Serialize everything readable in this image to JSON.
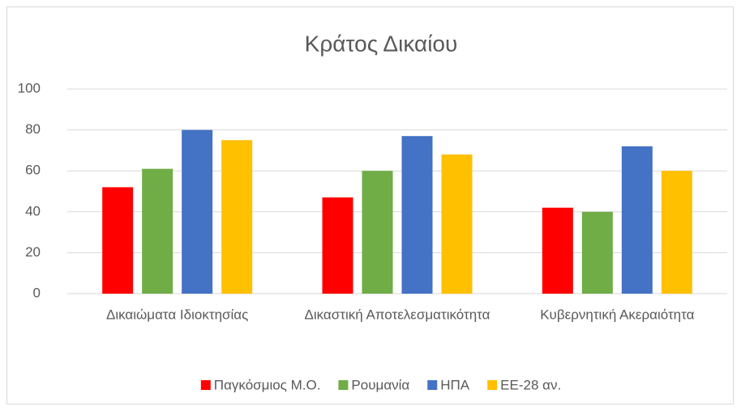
{
  "chart_data": {
    "type": "bar",
    "title": "Κράτος Δικαίου",
    "categories": [
      "Δικαιώματα Ιδιοκτησίας",
      "Δικαστική Αποτελεσματικότητα",
      "Κυβερνητική Ακεραιότητα"
    ],
    "series": [
      {
        "name": "Παγκόσμιος Μ.Ο.",
        "color": "#ff0000",
        "values": [
          52,
          47,
          42
        ]
      },
      {
        "name": "Ρουμανία",
        "color": "#70ad47",
        "values": [
          61,
          60,
          40
        ]
      },
      {
        "name": "ΗΠΑ",
        "color": "#4472c4",
        "values": [
          80,
          77,
          72
        ]
      },
      {
        "name": "ΕΕ-28 αν.",
        "color": "#ffc000",
        "values": [
          75,
          68,
          60
        ]
      }
    ],
    "ylim": [
      0,
      100
    ],
    "yticks": [
      0,
      20,
      40,
      60,
      80,
      100
    ],
    "grid": true,
    "legend": "bottom"
  }
}
